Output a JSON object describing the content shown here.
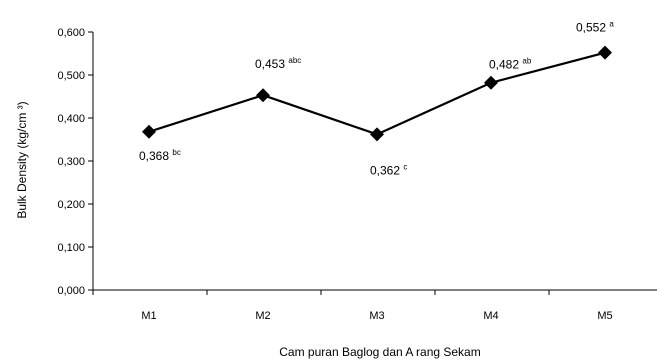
{
  "chart_data": {
    "type": "line",
    "categories": [
      "M1",
      "M2",
      "M3",
      "M4",
      "M5"
    ],
    "values": [
      0.368,
      0.453,
      0.362,
      0.482,
      0.552
    ],
    "data_labels": [
      {
        "value": "0,368",
        "notation": "bc"
      },
      {
        "value": "0,453",
        "notation": "abc"
      },
      {
        "value": "0,362",
        "notation": "c"
      },
      {
        "value": "0,482",
        "notation": "ab"
      },
      {
        "value": "0,552",
        "notation": "a"
      }
    ],
    "y_ticks": [
      "0,000",
      "0,100",
      "0,200",
      "0,300",
      "0,400",
      "0,500",
      "0,600"
    ],
    "ylim": [
      0,
      0.6
    ],
    "xlabel": "Cam puran Baglog dan A rang Sekam",
    "ylabel": "Bulk Density (kg/cm ³)",
    "title": "",
    "grid": false,
    "legend": "none",
    "line_color": "#000000",
    "marker": "diamond"
  }
}
